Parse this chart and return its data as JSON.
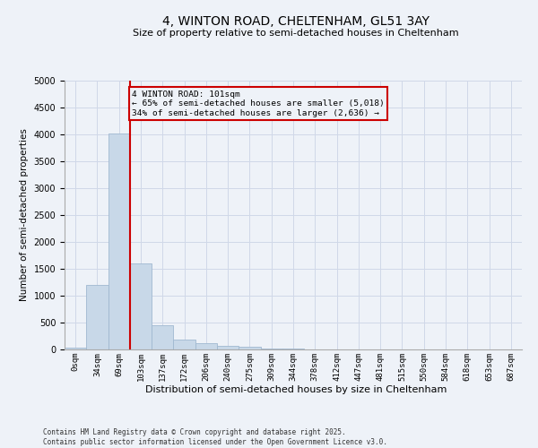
{
  "title_line1": "4, WINTON ROAD, CHELTENHAM, GL51 3AY",
  "title_line2": "Size of property relative to semi-detached houses in Cheltenham",
  "xlabel": "Distribution of semi-detached houses by size in Cheltenham",
  "ylabel": "Number of semi-detached properties",
  "bar_color": "#c8d8e8",
  "bar_edge_color": "#a0b8d0",
  "grid_color": "#d0d8e8",
  "vline_color": "#cc0000",
  "vline_x_index": 2.5,
  "annotation_text": "4 WINTON ROAD: 101sqm\n← 65% of semi-detached houses are smaller (5,018)\n34% of semi-detached houses are larger (2,636) →",
  "annotation_box_color": "#cc0000",
  "categories": [
    "0sqm",
    "34sqm",
    "69sqm",
    "103sqm",
    "137sqm",
    "172sqm",
    "206sqm",
    "240sqm",
    "275sqm",
    "309sqm",
    "344sqm",
    "378sqm",
    "412sqm",
    "447sqm",
    "481sqm",
    "515sqm",
    "550sqm",
    "584sqm",
    "618sqm",
    "653sqm",
    "687sqm"
  ],
  "values": [
    30,
    1200,
    4010,
    1600,
    450,
    180,
    110,
    70,
    55,
    25,
    10,
    5,
    2,
    1,
    0,
    0,
    0,
    0,
    0,
    0,
    0
  ],
  "ylim": [
    0,
    5000
  ],
  "yticks": [
    0,
    500,
    1000,
    1500,
    2000,
    2500,
    3000,
    3500,
    4000,
    4500,
    5000
  ],
  "footer_line1": "Contains HM Land Registry data © Crown copyright and database right 2025.",
  "footer_line2": "Contains public sector information licensed under the Open Government Licence v3.0.",
  "bg_color": "#eef2f8"
}
